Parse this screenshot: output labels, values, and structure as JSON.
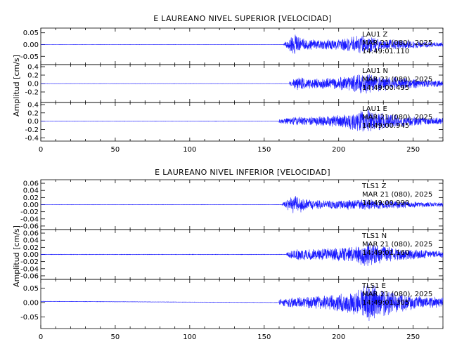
{
  "chart_data": [
    {
      "type": "line",
      "title": "E LAUREANO NIVEL SUPERIOR [VELOCIDAD]",
      "ylabel": "Amplitud [cm/s]",
      "xlim": [
        0,
        270
      ],
      "x_ticks": [
        "0",
        "50",
        "100",
        "150",
        "200",
        "250"
      ],
      "color": "#1a1aff",
      "panels": [
        {
          "ylim": [
            -0.085,
            0.07
          ],
          "y_ticks": [
            {
              "v": -0.05,
              "label": "-0.05"
            },
            {
              "v": 0.0,
              "label": "0.00"
            },
            {
              "v": 0.05,
              "label": "0.05"
            }
          ],
          "annotation": [
            "LAU1 Z",
            "MAR 21 (080), 2025",
            "14:49:01.110"
          ],
          "series": {
            "onset": 163,
            "pre_amp": 0.0005,
            "max_amp": 0.047,
            "peaks": [
              [
                170,
                1.0
              ],
              [
                176,
                0.55
              ],
              [
                185,
                0.45
              ],
              [
                200,
                0.5
              ],
              [
                215,
                0.85
              ],
              [
                222,
                0.7
              ],
              [
                235,
                0.45
              ],
              [
                250,
                0.35
              ],
              [
                262,
                0.25
              ],
              [
                270,
                0.22
              ]
            ],
            "seed": 11
          }
        },
        {
          "ylim": [
            -0.45,
            0.45
          ],
          "y_ticks": [
            {
              "v": -0.2,
              "label": "-0.2"
            },
            {
              "v": 0.0,
              "label": "0.0"
            },
            {
              "v": 0.2,
              "label": "0.2"
            },
            {
              "v": 0.4,
              "label": "0.4"
            }
          ],
          "annotation": [
            "LAU1 N",
            "MAR 21 (080), 2025",
            "14:49:00.495"
          ],
          "series": {
            "onset": 167,
            "pre_amp": 0.002,
            "max_amp": 0.3,
            "peaks": [
              [
                172,
                0.55
              ],
              [
                180,
                0.45
              ],
              [
                190,
                0.4
              ],
              [
                205,
                0.6
              ],
              [
                218,
                0.85
              ],
              [
                225,
                0.7
              ],
              [
                240,
                0.5
              ],
              [
                255,
                0.35
              ],
              [
                270,
                0.25
              ]
            ],
            "seed": 23
          }
        },
        {
          "ylim": [
            -0.48,
            0.45
          ],
          "y_ticks": [
            {
              "v": -0.4,
              "label": "-0.4"
            },
            {
              "v": -0.2,
              "label": "-0.2"
            },
            {
              "v": 0.0,
              "label": "0.0"
            },
            {
              "v": 0.2,
              "label": "0.2"
            },
            {
              "v": 0.4,
              "label": "0.4"
            }
          ],
          "annotation": [
            "LAU1 E",
            "MAR 21 (080), 2025",
            "14:49:00.945"
          ],
          "series": {
            "onset": 160,
            "pre_amp": 0.003,
            "max_amp": 0.32,
            "peaks": [
              [
                168,
                0.3
              ],
              [
                175,
                0.35
              ],
              [
                190,
                0.4
              ],
              [
                205,
                0.55
              ],
              [
                220,
                0.95
              ],
              [
                230,
                0.6
              ],
              [
                245,
                0.4
              ],
              [
                260,
                0.3
              ],
              [
                270,
                0.25
              ]
            ],
            "seed": 37
          }
        }
      ]
    },
    {
      "type": "line",
      "title": "E LAUREANO NIVEL INFERIOR [VELOCIDAD]",
      "ylabel": "Amplitud [cm/s]",
      "xlim": [
        0,
        270
      ],
      "x_ticks": [
        "0",
        "50",
        "100",
        "150",
        "200",
        "250"
      ],
      "color": "#1a1aff",
      "panels": [
        {
          "ylim": [
            -0.07,
            0.07
          ],
          "y_ticks": [
            {
              "v": -0.06,
              "label": "-0.06"
            },
            {
              "v": -0.04,
              "label": "-0.04"
            },
            {
              "v": -0.02,
              "label": "-0.02"
            },
            {
              "v": 0.0,
              "label": "0.00"
            },
            {
              "v": 0.02,
              "label": "0.02"
            },
            {
              "v": 0.04,
              "label": "0.04"
            },
            {
              "v": 0.06,
              "label": "0.06"
            }
          ],
          "annotation": [
            "TLS1 Z",
            "MAR 21 (080), 2025",
            "14:49:00.990"
          ],
          "series": {
            "onset": 162,
            "pre_amp": 0.0004,
            "max_amp": 0.03,
            "peaks": [
              [
                170,
                1.0
              ],
              [
                178,
                0.55
              ],
              [
                190,
                0.4
              ],
              [
                205,
                0.45
              ],
              [
                220,
                0.5
              ],
              [
                235,
                0.4
              ],
              [
                250,
                0.3
              ],
              [
                270,
                0.2
              ]
            ],
            "seed": 53
          }
        },
        {
          "ylim": [
            -0.07,
            0.07
          ],
          "y_ticks": [
            {
              "v": -0.06,
              "label": "-0.06"
            },
            {
              "v": -0.04,
              "label": "-0.04"
            },
            {
              "v": -0.02,
              "label": "-0.02"
            },
            {
              "v": 0.0,
              "label": "0.00"
            },
            {
              "v": 0.02,
              "label": "0.02"
            },
            {
              "v": 0.04,
              "label": "0.04"
            },
            {
              "v": 0.06,
              "label": "0.06"
            }
          ],
          "annotation": [
            "TLS1 N",
            "MAR 21 (080), 2025",
            "14:49:01.160"
          ],
          "series": {
            "onset": 165,
            "pre_amp": 0.0006,
            "max_amp": 0.04,
            "peaks": [
              [
                172,
                0.45
              ],
              [
                182,
                0.4
              ],
              [
                195,
                0.45
              ],
              [
                210,
                0.6
              ],
              [
                220,
                0.9
              ],
              [
                228,
                0.65
              ],
              [
                245,
                0.4
              ],
              [
                260,
                0.3
              ],
              [
                270,
                0.25
              ]
            ],
            "seed": 71
          }
        },
        {
          "ylim": [
            -0.09,
            0.08
          ],
          "y_ticks": [
            {
              "v": -0.05,
              "label": "-0.05"
            },
            {
              "v": 0.0,
              "label": "0.00"
            },
            {
              "v": 0.05,
              "label": "0.05"
            }
          ],
          "annotation": [
            "TLS1 E",
            "MAR 21 (080), 2025",
            "14:49:01.305"
          ],
          "series": {
            "onset": 160,
            "pre_amp": 0.0006,
            "max_amp": 0.075,
            "peaks": [
              [
                168,
                0.25
              ],
              [
                180,
                0.3
              ],
              [
                195,
                0.35
              ],
              [
                210,
                0.55
              ],
              [
                220,
                0.95
              ],
              [
                228,
                0.7
              ],
              [
                240,
                0.45
              ],
              [
                255,
                0.3
              ],
              [
                270,
                0.25
              ]
            ],
            "drift_start": 0.004,
            "seed": 89
          }
        }
      ]
    }
  ]
}
